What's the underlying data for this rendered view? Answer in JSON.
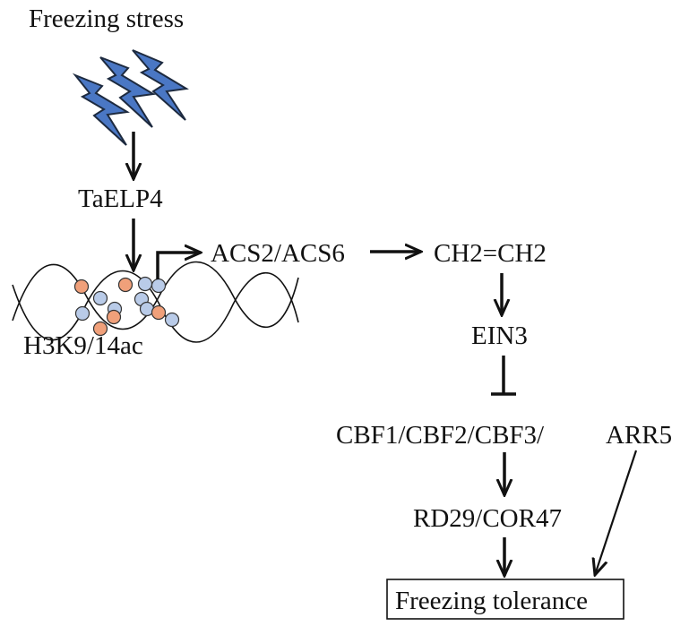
{
  "diagram": {
    "nodes": {
      "stimulus": "Freezing stress",
      "gene": "TaELP4",
      "histone_mark": "H3K9/14ac",
      "acs": "ACS2/ACS6",
      "ethylene": "CH2=CH2",
      "ein3": "EIN3",
      "cbf": "CBF1/CBF2/CBF3/",
      "arr5": "ARR5",
      "rd29": "RD29/COR47",
      "outcome": "Freezing tolerance"
    },
    "edges": [
      {
        "from": "stimulus",
        "to": "gene",
        "type": "activation"
      },
      {
        "from": "gene",
        "to": "histone_mark",
        "type": "activation"
      },
      {
        "from": "histone_mark",
        "to": "acs",
        "type": "transcription"
      },
      {
        "from": "acs",
        "to": "ethylene",
        "type": "activation"
      },
      {
        "from": "ethylene",
        "to": "ein3",
        "type": "activation"
      },
      {
        "from": "ein3",
        "to": "cbf",
        "type": "inhibition"
      },
      {
        "from": "cbf",
        "to": "rd29",
        "type": "activation"
      },
      {
        "from": "rd29",
        "to": "outcome",
        "type": "activation"
      },
      {
        "from": "arr5",
        "to": "outcome",
        "type": "activation"
      }
    ],
    "colors": {
      "lightning": "#4a77c4",
      "nucleosome_orange": "#f0a07a",
      "nucleosome_blue": "#b9cbe8",
      "ink": "#111111"
    }
  }
}
